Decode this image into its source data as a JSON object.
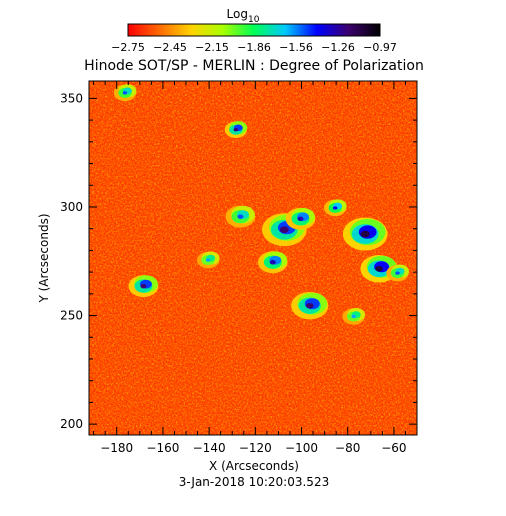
{
  "colorbar": {
    "title_base": "Log",
    "title_sub": "10",
    "ticks": [
      "-2.75",
      "-2.45",
      "-2.15",
      "-1.86",
      "-1.56",
      "-1.26",
      "-0.97"
    ],
    "colormap": "rainbow (red low, blue/black high)",
    "stops": [
      "#ff0000",
      "#ff6a00",
      "#ffd200",
      "#aaff00",
      "#00ff55",
      "#00c8ff",
      "#0000ff",
      "#3c006e",
      "#000000"
    ]
  },
  "plot": {
    "title": "Hinode SOT/SP - MERLIN : Degree of Polarization",
    "xlabel": "X (Arcseconds)",
    "ylabel": "Y (Arcseconds)",
    "footer": "3-Jan-2018 10:20:03.523"
  },
  "chart_data": {
    "type": "heatmap",
    "title": "Hinode SOT/SP - MERLIN : Degree of Polarization",
    "xlabel": "X (Arcseconds)",
    "ylabel": "Y (Arcseconds)",
    "xlim": [
      -192,
      -50
    ],
    "ylim": [
      195,
      358
    ],
    "xticks": [
      -180,
      -160,
      -140,
      -120,
      -100,
      -80,
      -60
    ],
    "yticks": [
      200,
      250,
      300,
      350
    ],
    "value_range_log10": [
      -2.75,
      -0.97
    ],
    "background_level_log10": -2.6,
    "features": [
      {
        "x": -72,
        "y": 288,
        "peak_log10": -1.1,
        "radius": 6
      },
      {
        "x": -66,
        "y": 272,
        "peak_log10": -1.1,
        "radius": 5
      },
      {
        "x": -107,
        "y": 290,
        "peak_log10": -1.2,
        "radius": 6
      },
      {
        "x": -100,
        "y": 295,
        "peak_log10": -1.3,
        "radius": 4
      },
      {
        "x": -96,
        "y": 255,
        "peak_log10": -1.2,
        "radius": 5
      },
      {
        "x": -112,
        "y": 275,
        "peak_log10": -1.3,
        "radius": 4
      },
      {
        "x": -168,
        "y": 264,
        "peak_log10": -1.2,
        "radius": 4
      },
      {
        "x": -128,
        "y": 336,
        "peak_log10": -1.2,
        "radius": 3
      },
      {
        "x": -126,
        "y": 296,
        "peak_log10": -1.5,
        "radius": 4
      },
      {
        "x": -85,
        "y": 300,
        "peak_log10": -1.4,
        "radius": 3
      },
      {
        "x": -77,
        "y": 250,
        "peak_log10": -1.6,
        "radius": 3
      },
      {
        "x": -58,
        "y": 270,
        "peak_log10": -1.5,
        "radius": 3
      },
      {
        "x": -176,
        "y": 353,
        "peak_log10": -1.5,
        "radius": 3
      },
      {
        "x": -140,
        "y": 276,
        "peak_log10": -1.6,
        "radius": 3
      }
    ]
  }
}
